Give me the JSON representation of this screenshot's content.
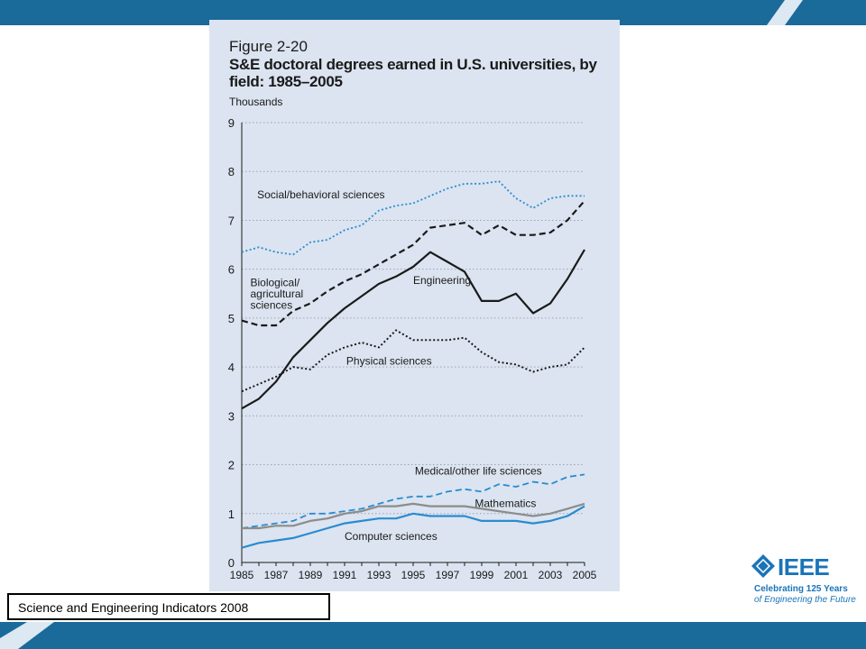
{
  "figure": {
    "number": "Figure 2-20",
    "title": "S&E doctoral degrees earned in U.S. universities, by field: 1985–2005",
    "y_unit": "Thousands"
  },
  "caption": "Science and Engineering Indicators 2008",
  "logo": {
    "word": "IEEE",
    "line1": "Celebrating 125 Years",
    "line2": "of Engineering the Future"
  },
  "colors": {
    "brand_blue": "#1a6a9a",
    "panel_bg": "#dbe4f0",
    "social": "#2a8bd0",
    "biological": "#1a1a1a",
    "engineering": "#1a1a1a",
    "physical": "#1a1a1a",
    "medical": "#2a8bd0",
    "mathematics": "#8c8c8c",
    "computer": "#2a8bd0"
  },
  "chart_data": {
    "type": "line",
    "title": "S&E doctoral degrees earned in U.S. universities, by field: 1985–2005",
    "ylabel": "Thousands",
    "xlabel": "",
    "ylim": [
      0,
      9
    ],
    "yticks": [
      0,
      1,
      2,
      3,
      4,
      5,
      6,
      7,
      8,
      9
    ],
    "xticks": [
      "1985",
      "1987",
      "1989",
      "1991",
      "1993",
      "1995",
      "1997",
      "1999",
      "2001",
      "2003",
      "2005"
    ],
    "grid": "horizontal dotted",
    "x": [
      1985,
      1986,
      1987,
      1988,
      1989,
      1990,
      1991,
      1992,
      1993,
      1994,
      1995,
      1996,
      1997,
      1998,
      1999,
      2000,
      2001,
      2002,
      2003,
      2004,
      2005
    ],
    "series": [
      {
        "name": "Social/behavioral sciences",
        "style": "dotted",
        "color": "#2a8bd0",
        "values": [
          6.35,
          6.45,
          6.35,
          6.3,
          6.55,
          6.6,
          6.8,
          6.9,
          7.2,
          7.3,
          7.35,
          7.5,
          7.65,
          7.75,
          7.75,
          7.8,
          7.45,
          7.25,
          7.45,
          7.5,
          7.5
        ]
      },
      {
        "name": "Biological/ agricultural sciences",
        "style": "dashed",
        "color": "#1a1a1a",
        "values": [
          4.95,
          4.85,
          4.85,
          5.15,
          5.3,
          5.55,
          5.75,
          5.9,
          6.1,
          6.3,
          6.5,
          6.85,
          6.9,
          6.95,
          6.7,
          6.9,
          6.7,
          6.7,
          6.75,
          7.0,
          7.4
        ]
      },
      {
        "name": "Engineering",
        "style": "solid",
        "color": "#1a1a1a",
        "values": [
          3.15,
          3.35,
          3.7,
          4.2,
          4.55,
          4.9,
          5.2,
          5.45,
          5.7,
          5.85,
          6.05,
          6.35,
          6.15,
          5.95,
          5.35,
          5.35,
          5.5,
          5.1,
          5.3,
          5.8,
          6.4
        ]
      },
      {
        "name": "Physical sciences",
        "style": "dotted",
        "color": "#1a1a1a",
        "values": [
          3.5,
          3.65,
          3.8,
          4.0,
          3.95,
          4.25,
          4.4,
          4.5,
          4.4,
          4.75,
          4.55,
          4.55,
          4.55,
          4.6,
          4.3,
          4.1,
          4.05,
          3.9,
          4.0,
          4.05,
          4.4
        ]
      },
      {
        "name": "Medical/other life sciences",
        "style": "dashed",
        "color": "#2a8bd0",
        "values": [
          0.7,
          0.75,
          0.8,
          0.85,
          1.0,
          1.0,
          1.05,
          1.1,
          1.2,
          1.3,
          1.35,
          1.35,
          1.45,
          1.5,
          1.45,
          1.6,
          1.55,
          1.65,
          1.6,
          1.75,
          1.8
        ]
      },
      {
        "name": "Mathematics",
        "style": "solid",
        "color": "#8c8c8c",
        "values": [
          0.7,
          0.7,
          0.75,
          0.75,
          0.85,
          0.9,
          1.0,
          1.05,
          1.15,
          1.15,
          1.2,
          1.15,
          1.15,
          1.15,
          1.1,
          1.05,
          1.0,
          0.95,
          1.0,
          1.1,
          1.2
        ]
      },
      {
        "name": "Computer sciences",
        "style": "solid",
        "color": "#2a8bd0",
        "values": [
          0.3,
          0.4,
          0.45,
          0.5,
          0.6,
          0.7,
          0.8,
          0.85,
          0.9,
          0.9,
          1.0,
          0.95,
          0.95,
          0.95,
          0.85,
          0.85,
          0.85,
          0.8,
          0.85,
          0.95,
          1.15
        ]
      }
    ],
    "annotations": [
      {
        "text": "Social/behavioral sciences",
        "series": 0
      },
      {
        "text": "Biological/",
        "series": 1
      },
      {
        "text": "agricultural",
        "series": 1
      },
      {
        "text": "sciences",
        "series": 1
      },
      {
        "text": "Engineering",
        "series": 2
      },
      {
        "text": "Physical sciences",
        "series": 3
      },
      {
        "text": "Medical/other life sciences",
        "series": 4
      },
      {
        "text": "Mathematics",
        "series": 5
      },
      {
        "text": "Computer sciences",
        "series": 6
      }
    ]
  }
}
